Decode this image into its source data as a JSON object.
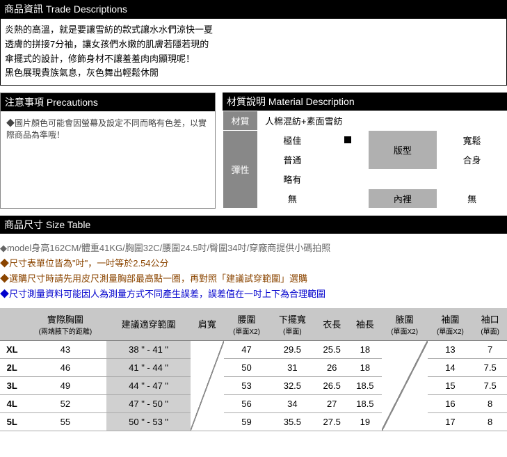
{
  "trade": {
    "header": "商品資訊 Trade Descriptions",
    "lines": [
      "炎熱的高溫，就是要讓雪紡的款式讓水水們涼快一夏",
      "透膚的拼接7分袖，讓女孩們水嫩的肌膚若隱若現的",
      "傘擺式的設計，修飾身材不讓羞羞肉肉顯現呢！",
      "黑色展現貴族氣息，灰色舞出輕鬆休閒"
    ]
  },
  "precautions": {
    "header": "注意事項 Precautions",
    "text": "◆圖片顏色可能會因螢幕及設定不同而略有色差，以實際商品為準哦！"
  },
  "material": {
    "header": "材質說明 Material Description",
    "material_label": "材質",
    "material_value": "人棉混紡+素面雪紡",
    "elastic_label": "彈性",
    "elastic_options": [
      "極佳",
      "普通",
      "略有",
      "無"
    ],
    "elastic_selected_index": 0,
    "fit_label": "版型",
    "fit_options": [
      "寬鬆",
      "合身"
    ],
    "lining_label": "內裡",
    "lining_value": "無",
    "colors": {
      "label_bg": "#888888",
      "sublabel_bg": "#b0b0b0",
      "selected_marker": "#000000"
    }
  },
  "size": {
    "header": "商品尺寸 Size Table",
    "notes": [
      {
        "cls": "gray-note",
        "text": "◆model身高162CM/體重41KG/胸圍32C/腰圍24.5吋/臀圍34吋/穿廠商提供小碼拍照"
      },
      {
        "cls": "brown-note",
        "text": "◆尺寸表單位皆為\"吋\"，一吋等於2.54公分"
      },
      {
        "cls": "brown-note",
        "text": "◆選購尺寸時請先用皮尺測量胸部最高點一圈，再對照「建議試穿範圍」選購"
      },
      {
        "cls": "blue-note",
        "text": "◆尺寸測量資料可能因人為測量方式不同產生誤差，誤差值在一吋上下為合理範圍"
      }
    ],
    "columns": [
      {
        "label": "",
        "sub": ""
      },
      {
        "label": "實際胸圍",
        "sub": "(兩端腋下的距離)"
      },
      {
        "label": "建議適穿範圍",
        "sub": ""
      },
      {
        "label": "肩寬",
        "sub": ""
      },
      {
        "label": "腰圍",
        "sub": "(單面X2)"
      },
      {
        "label": "下擺寬",
        "sub": "(單面)"
      },
      {
        "label": "衣長",
        "sub": ""
      },
      {
        "label": "袖長",
        "sub": ""
      },
      {
        "label": "腋圍",
        "sub": "(單面X2)"
      },
      {
        "label": "袖圍",
        "sub": "(單面X2)"
      },
      {
        "label": "袖口",
        "sub": "(單面)"
      }
    ],
    "rows": [
      {
        "size": "XL",
        "bust": "43",
        "range": "38 \" - 41 \"",
        "waist": "47",
        "hem": "29.5",
        "length": "25.5",
        "sleeve": "18",
        "cuff_circ": "13",
        "cuff_open": "7"
      },
      {
        "size": "2L",
        "bust": "46",
        "range": "41 \" - 44 \"",
        "waist": "50",
        "hem": "31",
        "length": "26",
        "sleeve": "18",
        "cuff_circ": "14",
        "cuff_open": "7.5"
      },
      {
        "size": "3L",
        "bust": "49",
        "range": "44 \" - 47 \"",
        "waist": "53",
        "hem": "32.5",
        "length": "26.5",
        "sleeve": "18.5",
        "cuff_circ": "15",
        "cuff_open": "7.5"
      },
      {
        "size": "4L",
        "bust": "52",
        "range": "47 \" - 50 \"",
        "waist": "56",
        "hem": "34",
        "length": "27",
        "sleeve": "18.5",
        "cuff_circ": "16",
        "cuff_open": "8"
      },
      {
        "size": "5L",
        "bust": "55",
        "range": "50 \" - 53 \"",
        "waist": "59",
        "hem": "35.5",
        "length": "27.5",
        "sleeve": "19",
        "cuff_circ": "17",
        "cuff_open": "8"
      }
    ]
  }
}
